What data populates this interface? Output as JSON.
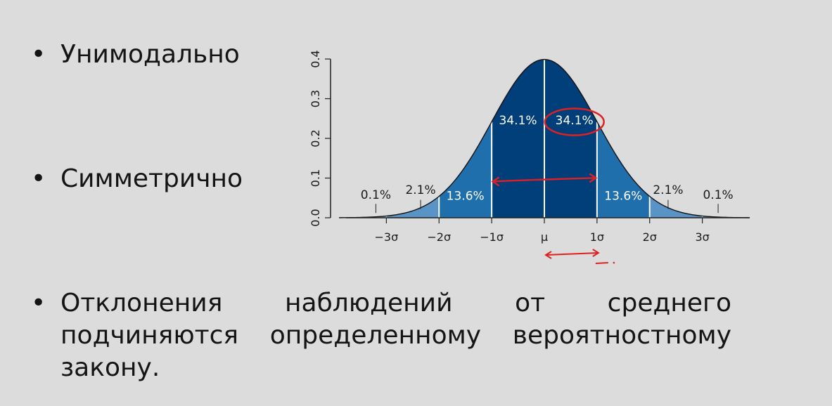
{
  "slide": {
    "bullets": [
      {
        "marker": "•",
        "text": "Унимодально"
      },
      {
        "marker": "•",
        "text": "Симметрично"
      },
      {
        "marker": "•",
        "text": "Отклонения наблюдений от среднего подчиняются определенному вероятностному закону."
      }
    ]
  },
  "colors": {
    "background": "#dcdcdc",
    "band_1sigma": "#003f7a",
    "band_2sigma": "#1f6fad",
    "band_3sigma": "#5a93c6",
    "band_tail": "#8db4d9",
    "annotation": "#e02020"
  },
  "chart_data": {
    "type": "area",
    "distribution": "standard normal",
    "xlim": [
      -3.9,
      3.9
    ],
    "ylim": [
      0,
      0.4
    ],
    "yticks": [
      0.0,
      0.1,
      0.2,
      0.3,
      0.4
    ],
    "ytick_labels": [
      "0.0",
      "0.1",
      "0.2",
      "0.3",
      "0.4"
    ],
    "xticks": [
      -3,
      -2,
      -1,
      0,
      1,
      2,
      3
    ],
    "xtick_labels": [
      "−3σ",
      "−2σ",
      "−1σ",
      "μ",
      "1σ",
      "2σ",
      "3σ"
    ],
    "bands": [
      {
        "from": -1,
        "to": 0,
        "percent": "34.1%",
        "color": "#003f7a"
      },
      {
        "from": 0,
        "to": 1,
        "percent": "34.1%",
        "color": "#003f7a"
      },
      {
        "from": -2,
        "to": -1,
        "percent": "13.6%",
        "color": "#1f6fad"
      },
      {
        "from": 1,
        "to": 2,
        "percent": "13.6%",
        "color": "#1f6fad"
      },
      {
        "from": -3,
        "to": -2,
        "percent": "2.1%",
        "color": "#5a93c6"
      },
      {
        "from": 2,
        "to": 3,
        "percent": "2.1%",
        "color": "#5a93c6"
      },
      {
        "from": -3.9,
        "to": -3,
        "percent": "0.1%",
        "color": "#8db4d9"
      },
      {
        "from": 3,
        "to": 3.9,
        "percent": "0.1%",
        "color": "#8db4d9"
      }
    ],
    "annotations": [
      {
        "kind": "ellipse",
        "around": "34.1% (0 to 1σ)",
        "color": "#e02020"
      },
      {
        "kind": "double-arrow",
        "x_from": -1,
        "x_to": 1,
        "y": 0.095,
        "color": "#e02020"
      },
      {
        "kind": "double-arrow",
        "x_from": 0,
        "x_to": 1,
        "position": "below axis",
        "color": "#e02020"
      }
    ],
    "grid": false,
    "legend": "none"
  }
}
